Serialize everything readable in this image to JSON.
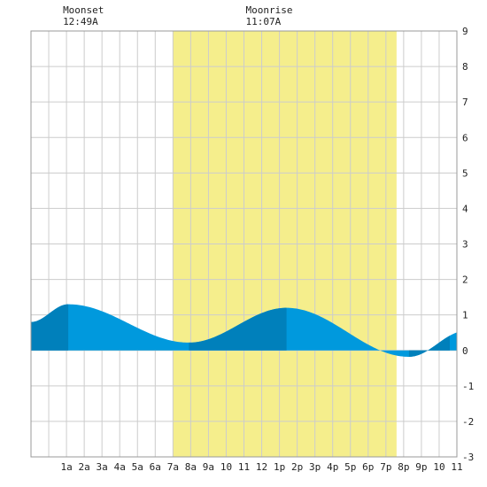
{
  "chart_data": {
    "type": "area",
    "title": "",
    "xlabel": "",
    "ylabel": "",
    "x_range_hours": [
      -1,
      23
    ],
    "ylim": [
      -3,
      9
    ],
    "y_ticks": [
      -3,
      -2,
      -1,
      0,
      1,
      2,
      3,
      4,
      5,
      6,
      7,
      8,
      9
    ],
    "x_ticks": [
      {
        "hour": 1,
        "label": "1a"
      },
      {
        "hour": 2,
        "label": "2a"
      },
      {
        "hour": 3,
        "label": "3a"
      },
      {
        "hour": 4,
        "label": "4a"
      },
      {
        "hour": 5,
        "label": "5a"
      },
      {
        "hour": 6,
        "label": "6a"
      },
      {
        "hour": 7,
        "label": "7a"
      },
      {
        "hour": 8,
        "label": "8a"
      },
      {
        "hour": 9,
        "label": "9a"
      },
      {
        "hour": 10,
        "label": "10"
      },
      {
        "hour": 11,
        "label": "11"
      },
      {
        "hour": 12,
        "label": "12"
      },
      {
        "hour": 13,
        "label": "1p"
      },
      {
        "hour": 14,
        "label": "2p"
      },
      {
        "hour": 15,
        "label": "3p"
      },
      {
        "hour": 16,
        "label": "4p"
      },
      {
        "hour": 17,
        "label": "5p"
      },
      {
        "hour": 18,
        "label": "6p"
      },
      {
        "hour": 19,
        "label": "7p"
      },
      {
        "hour": 20,
        "label": "8p"
      },
      {
        "hour": 21,
        "label": "9p"
      },
      {
        "hour": 22,
        "label": "10"
      },
      {
        "hour": 23,
        "label": "11"
      }
    ],
    "grid": true,
    "daylight_hours": [
      7,
      19.6
    ],
    "series": [
      {
        "values": [
          {
            "hour": -1,
            "height": 0.8
          },
          {
            "hour": 1.1,
            "height": 1.3
          },
          {
            "hour": 7.9,
            "height": 0.22
          },
          {
            "hour": 13.4,
            "height": 1.2
          },
          {
            "hour": 20.3,
            "height": -0.18
          },
          {
            "hour": 23.5,
            "height": 0.55
          }
        ]
      }
    ],
    "extreme_bands": [
      [
        -1,
        1.1
      ],
      [
        7.9,
        13.4
      ],
      [
        20.3,
        22.6
      ]
    ],
    "moon_events": [
      {
        "label": "Moonset",
        "time": "12:49A",
        "hour": 0.8
      },
      {
        "label": "Moonrise",
        "time": "11:07A",
        "hour": 11.1
      }
    ],
    "colors": {
      "daylight": "#f5ee8c",
      "water": "#0099dd",
      "water_dark": "#0080bb",
      "grid": "#cccccc",
      "frame": "#999999"
    }
  }
}
